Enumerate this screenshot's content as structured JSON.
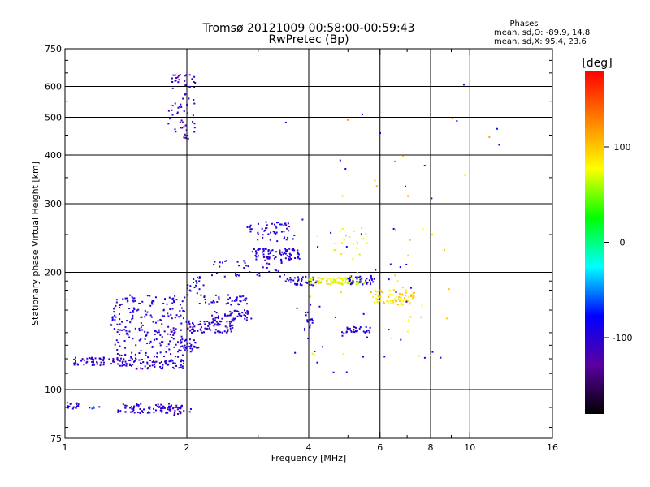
{
  "chart_data": {
    "type": "scatter",
    "title": "Tromsø 20121009 00:58:00-00:59:43",
    "subtitle": "RwPretec (Bp)",
    "xlabel": "Frequency [MHz]",
    "ylabel": "Stationary phase Virtual Height [km]",
    "x_scale": "log",
    "y_scale": "log",
    "xlim": [
      1,
      16
    ],
    "ylim": [
      75,
      750
    ],
    "x_ticks": [
      1,
      2,
      4,
      6,
      8,
      10,
      16
    ],
    "x_minor_ticks": [
      3,
      5,
      7,
      9
    ],
    "y_ticks": [
      75,
      100,
      200,
      300,
      400,
      500,
      600,
      750
    ],
    "grid": true,
    "grid_x": [
      2,
      4,
      6,
      8,
      10
    ],
    "grid_y": [
      100,
      200,
      300,
      400,
      500,
      600
    ],
    "stats_title": "Phases",
    "stats": [
      "mean, sd,O: -89.9, 14.8",
      "mean, sd,X:  95.4, 23.6"
    ],
    "colorbar": {
      "label": "[deg]",
      "range": [
        -180,
        180
      ],
      "ticks": [
        100,
        0,
        -100
      ],
      "colors": [
        "#000000",
        "#5a00a0",
        "#0000ff",
        "#00ffff",
        "#00ff00",
        "#ffff00",
        "#ff8000",
        "#ff0000"
      ]
    },
    "clusters": [
      {
        "x": [
          1.0,
          1.08
        ],
        "y": [
          89,
          93
        ],
        "phase": -100,
        "n": 18
      },
      {
        "x": [
          1.15,
          1.22
        ],
        "y": [
          89,
          92
        ],
        "phase": -70,
        "n": 5
      },
      {
        "x": [
          1.35,
          1.95
        ],
        "y": [
          87,
          92
        ],
        "phase": -105,
        "n": 90
      },
      {
        "x": [
          1.85,
          2.05
        ],
        "y": [
          86,
          90
        ],
        "phase": -110,
        "n": 10
      },
      {
        "x": [
          1.05,
          1.5
        ],
        "y": [
          115,
          121
        ],
        "phase": -105,
        "n": 80
      },
      {
        "x": [
          1.5,
          2.0
        ],
        "y": [
          113,
          120
        ],
        "phase": -100,
        "n": 60
      },
      {
        "x": [
          1.3,
          2.0
        ],
        "y": [
          121,
          175
        ],
        "phase": -100,
        "n": 220
      },
      {
        "x": [
          1.9,
          2.15
        ],
        "y": [
          125,
          135
        ],
        "phase": -100,
        "n": 40
      },
      {
        "x": [
          2.0,
          2.6
        ],
        "y": [
          140,
          150
        ],
        "phase": -100,
        "n": 80
      },
      {
        "x": [
          2.3,
          2.9
        ],
        "y": [
          150,
          160
        ],
        "phase": -100,
        "n": 50
      },
      {
        "x": [
          2.15,
          2.9
        ],
        "y": [
          165,
          175
        ],
        "phase": -100,
        "n": 40
      },
      {
        "x": [
          2.0,
          2.2
        ],
        "y": [
          175,
          195
        ],
        "phase": -95,
        "n": 20
      },
      {
        "x": [
          2.3,
          3.5
        ],
        "y": [
          195,
          215
        ],
        "phase": -100,
        "n": 40
      },
      {
        "x": [
          2.9,
          3.8
        ],
        "y": [
          215,
          230
        ],
        "phase": -100,
        "n": 80
      },
      {
        "x": [
          2.8,
          3.6
        ],
        "y": [
          240,
          270
        ],
        "phase": -100,
        "n": 50
      },
      {
        "x": [
          1.8,
          2.1
        ],
        "y": [
          440,
          650
        ],
        "phase": -110,
        "n": 70
      },
      {
        "x": [
          3.5,
          4.2
        ],
        "y": [
          185,
          195
        ],
        "phase": -100,
        "n": 40
      },
      {
        "x": [
          4.0,
          5.5
        ],
        "y": [
          186,
          194
        ],
        "phase": 75,
        "n": 90
      },
      {
        "x": [
          5.0,
          5.8
        ],
        "y": [
          186,
          196
        ],
        "phase": -95,
        "n": 40
      },
      {
        "x": [
          5.7,
          7.3
        ],
        "y": [
          165,
          180
        ],
        "phase": 90,
        "n": 70
      },
      {
        "x": [
          4.6,
          5.6
        ],
        "y": [
          215,
          260
        ],
        "phase": 80,
        "n": 20
      },
      {
        "x": [
          4.8,
          5.7
        ],
        "y": [
          140,
          145
        ],
        "phase": -100,
        "n": 30
      },
      {
        "x": [
          3.9,
          4.1
        ],
        "y": [
          140,
          170
        ],
        "phase": -100,
        "n": 15
      },
      {
        "x": [
          3.5,
          8.5
        ],
        "y": [
          110,
          280
        ],
        "phase": -90,
        "n": 40
      },
      {
        "x": [
          4.0,
          9.0
        ],
        "y": [
          120,
          260
        ],
        "phase": 90,
        "n": 30
      },
      {
        "x": [
          3.5,
          12.5
        ],
        "y": [
          290,
          640
        ],
        "phase": -90,
        "n": 12
      },
      {
        "x": [
          4.2,
          12.5
        ],
        "y": [
          300,
          550
        ],
        "phase": 110,
        "n": 10
      }
    ]
  }
}
